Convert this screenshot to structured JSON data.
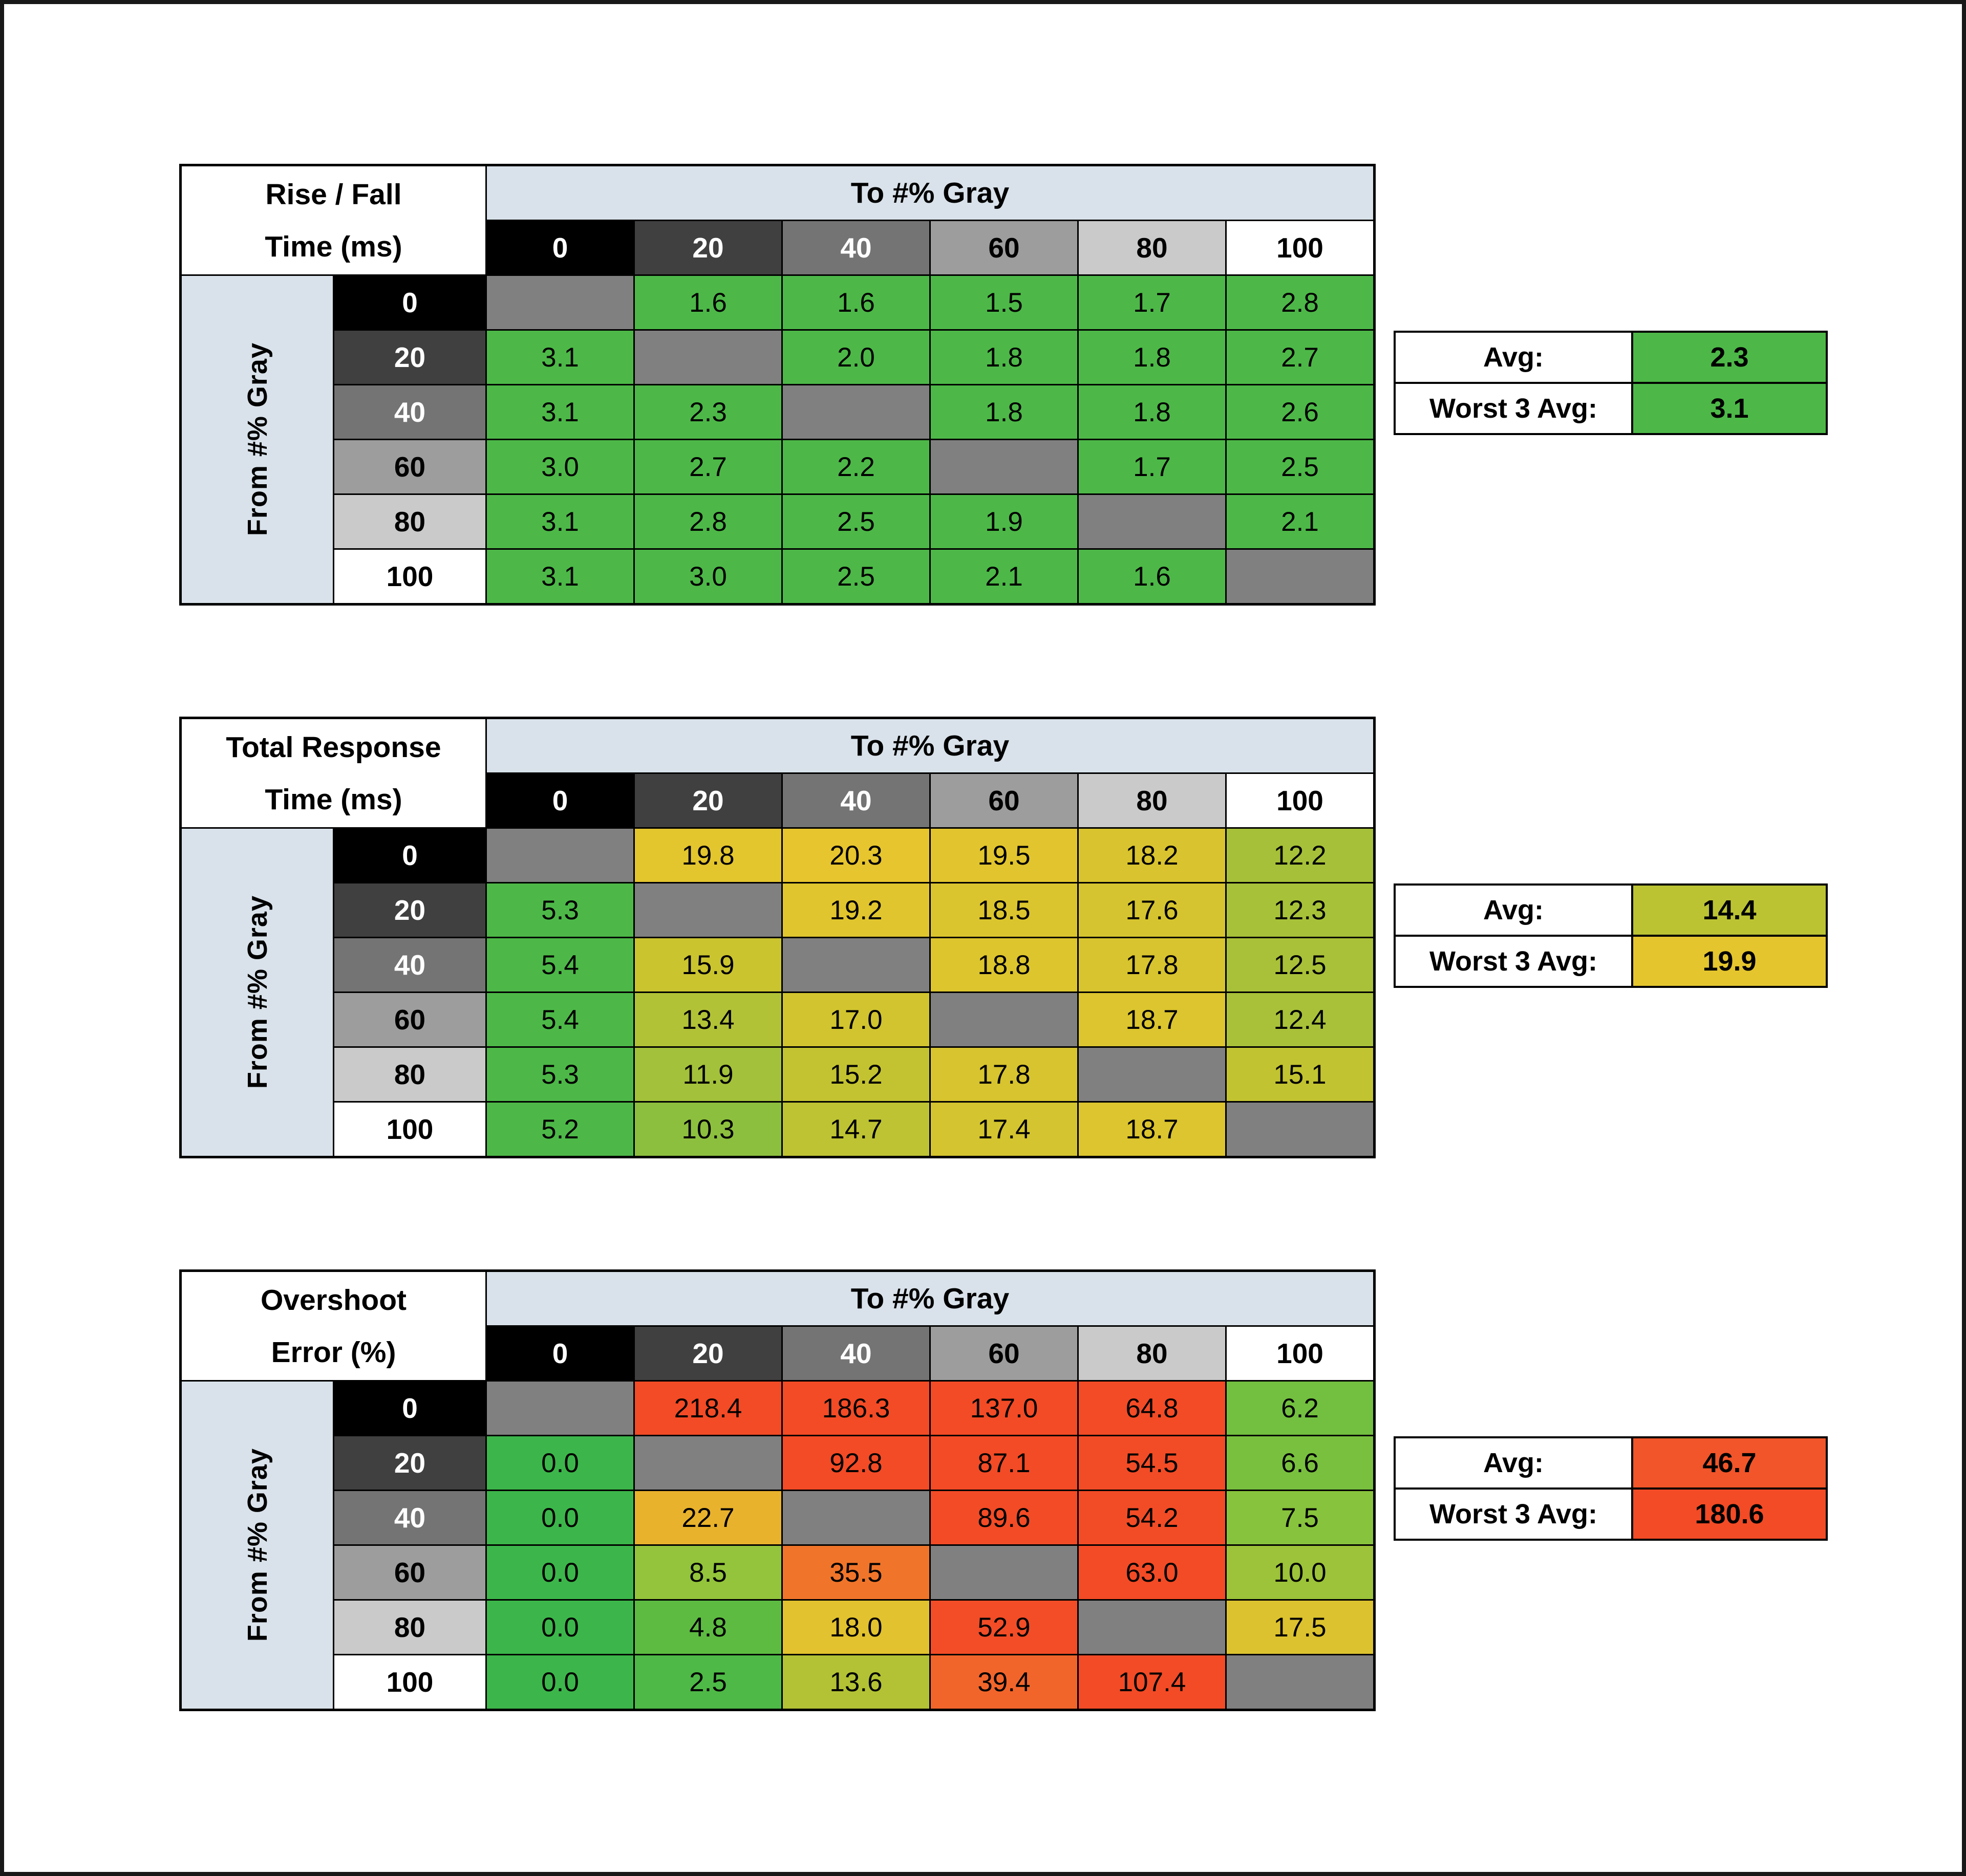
{
  "page": {
    "background": "#FFFFFF",
    "frame_color": "#181818"
  },
  "styles": {
    "header_bg": "#D9E2EA",
    "diagonal_bg": "#808080",
    "gray_shades": [
      "#000000",
      "#404040",
      "#747474",
      "#9D9D9D",
      "#CACACA",
      "#FFFFFF"
    ],
    "gray_text": [
      "#FFFFFF",
      "#FFFFFF",
      "#FFFFFF",
      "#000000",
      "#000000",
      "#000000"
    ],
    "color_scales": {
      "time": [
        [
          0,
          "#4DB848"
        ],
        [
          5.5,
          "#4DB848"
        ],
        [
          12,
          "#A4C13A"
        ],
        [
          16,
          "#CBC42F"
        ],
        [
          20.5,
          "#E8C52E"
        ]
      ],
      "overshoot": [
        [
          0,
          "#3CB64A"
        ],
        [
          5,
          "#5FBB42"
        ],
        [
          8,
          "#90C43C"
        ],
        [
          14,
          "#B5C233"
        ],
        [
          18,
          "#E2C22E"
        ],
        [
          24,
          "#EBAD2C"
        ],
        [
          32,
          "#F0832A"
        ],
        [
          42,
          "#F15A2B"
        ],
        [
          55,
          "#F24B26"
        ],
        [
          400,
          "#F24B26"
        ]
      ]
    }
  },
  "chart_data": [
    {
      "type": "heatmap",
      "title": "Rise / Fall Time (ms)",
      "title_lines": [
        "Rise / Fall",
        "Time (ms)"
      ],
      "x_title": "To #% Gray",
      "y_title": "From #% Gray",
      "x_labels": [
        "0",
        "20",
        "40",
        "60",
        "80",
        "100"
      ],
      "y_labels": [
        "0",
        "20",
        "40",
        "60",
        "80",
        "100"
      ],
      "values": [
        [
          null,
          1.6,
          1.6,
          1.5,
          1.7,
          2.8
        ],
        [
          3.1,
          null,
          2.0,
          1.8,
          1.8,
          2.7
        ],
        [
          3.1,
          2.3,
          null,
          1.8,
          1.8,
          2.6
        ],
        [
          3.0,
          2.7,
          2.2,
          null,
          1.7,
          2.5
        ],
        [
          3.1,
          2.8,
          2.5,
          1.9,
          null,
          2.1
        ],
        [
          3.1,
          3.0,
          2.5,
          2.1,
          1.6,
          null
        ]
      ],
      "summary": {
        "avg_label": "Avg:",
        "avg": 2.3,
        "worst_label": "Worst 3 Avg:",
        "worst3": 3.1
      },
      "color_scale": "time"
    },
    {
      "type": "heatmap",
      "title": "Total Response Time (ms)",
      "title_lines": [
        "Total Response",
        "Time (ms)"
      ],
      "x_title": "To #% Gray",
      "y_title": "From #% Gray",
      "x_labels": [
        "0",
        "20",
        "40",
        "60",
        "80",
        "100"
      ],
      "y_labels": [
        "0",
        "20",
        "40",
        "60",
        "80",
        "100"
      ],
      "values": [
        [
          null,
          19.8,
          20.3,
          19.5,
          18.2,
          12.2
        ],
        [
          5.3,
          null,
          19.2,
          18.5,
          17.6,
          12.3
        ],
        [
          5.4,
          15.9,
          null,
          18.8,
          17.8,
          12.5
        ],
        [
          5.4,
          13.4,
          17.0,
          null,
          18.7,
          12.4
        ],
        [
          5.3,
          11.9,
          15.2,
          17.8,
          null,
          15.1
        ],
        [
          5.2,
          10.3,
          14.7,
          17.4,
          18.7,
          null
        ]
      ],
      "summary": {
        "avg_label": "Avg:",
        "avg": 14.4,
        "worst_label": "Worst 3 Avg:",
        "worst3": 19.9
      },
      "color_scale": "time"
    },
    {
      "type": "heatmap",
      "title": "Overshoot Error (%)",
      "title_lines": [
        "Overshoot",
        "Error (%)"
      ],
      "x_title": "To #% Gray",
      "y_title": "From #% Gray",
      "x_labels": [
        "0",
        "20",
        "40",
        "60",
        "80",
        "100"
      ],
      "y_labels": [
        "0",
        "20",
        "40",
        "60",
        "80",
        "100"
      ],
      "values": [
        [
          null,
          218.4,
          186.3,
          137.0,
          64.8,
          6.2
        ],
        [
          0.0,
          null,
          92.8,
          87.1,
          54.5,
          6.6
        ],
        [
          0.0,
          22.7,
          null,
          89.6,
          54.2,
          7.5
        ],
        [
          0.0,
          8.5,
          35.5,
          null,
          63.0,
          10.0
        ],
        [
          0.0,
          4.8,
          18.0,
          52.9,
          null,
          17.5
        ],
        [
          0.0,
          2.5,
          13.6,
          39.4,
          107.4,
          null
        ]
      ],
      "summary": {
        "avg_label": "Avg:",
        "avg": 46.7,
        "worst_label": "Worst 3 Avg:",
        "worst3": 180.6
      },
      "color_scale": "overshoot"
    }
  ]
}
